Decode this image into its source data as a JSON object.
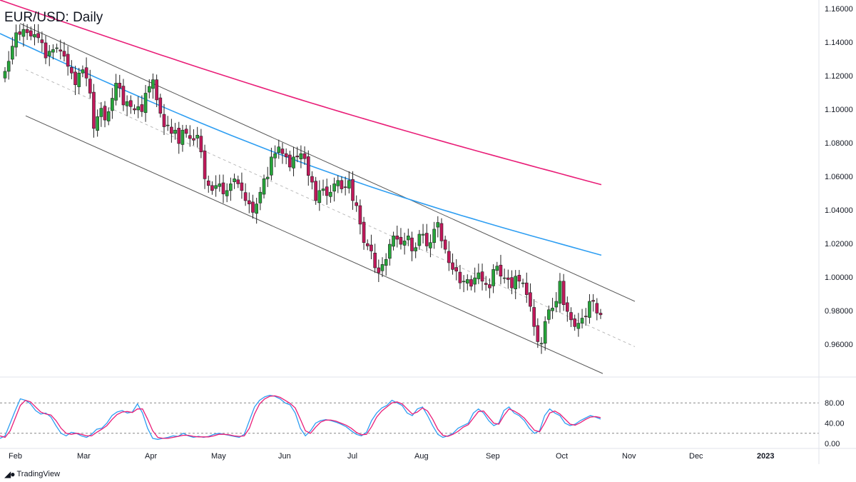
{
  "title": "EUR/USD: Daily",
  "brand": "TradingView",
  "chart_data": [
    {
      "type": "candlestick",
      "symbol": "EUR/USD",
      "timeframe": "Daily",
      "ylim": [
        0.9417,
        1.165
      ],
      "y_ticks": [
        "1.16000",
        "1.14000",
        "1.12000",
        "1.10000",
        "1.08000",
        "1.06000",
        "1.04000",
        "1.02000",
        "1.00000",
        "0.98000",
        "0.96000"
      ],
      "x_ticks": [
        "Feb",
        "Mar",
        "Apr",
        "May",
        "Jun",
        "Jul",
        "Aug",
        "Sep",
        "Oct",
        "Nov",
        "Dec",
        "2023"
      ],
      "colors": {
        "up": "#26a63a",
        "down": "#c2185b",
        "ma_fast": "#2e9ef2",
        "ma_slow": "#e91e78",
        "channel": "#555555",
        "midline": "#bbbbbb"
      },
      "series": [
        {
          "kind": "ohlc",
          "closes": [
            1.1225,
            1.1285,
            1.1375,
            1.1455,
            1.1445,
            1.1475,
            1.1455,
            1.1435,
            1.1445,
            1.1425,
            1.1395,
            1.1305,
            1.1345,
            1.1355,
            1.1365,
            1.1345,
            1.1315,
            1.1255,
            1.1215,
            1.1145,
            1.1215,
            1.1235,
            1.1185,
            1.1095,
            1.0885,
            1.0955,
            1.1005,
            1.0935,
            1.0985,
            1.1065,
            1.1155,
            1.1125,
            1.1025,
            1.1045,
            1.1015,
            1.0995,
            1.1015,
            1.0985,
            1.1095,
            1.1135,
            1.1175,
            1.1055,
            1.0975,
            1.0895,
            1.0905,
            1.0855,
            1.0875,
            1.0795,
            1.0875,
            1.0855,
            1.0825,
            1.0815,
            1.0845,
            1.0745,
            1.0585,
            1.0545,
            1.0515,
            1.0545,
            1.0555,
            1.0495,
            1.0515,
            1.0555,
            1.0585,
            1.0555,
            1.0515,
            1.0455,
            1.0435,
            1.0385,
            1.0435,
            1.0505,
            1.0585,
            1.0595,
            1.0715,
            1.0735,
            1.0775,
            1.0735,
            1.0715,
            1.0655,
            1.0715,
            1.0715,
            1.0735,
            1.0705,
            1.0605,
            1.0565,
            1.0455,
            1.0515,
            1.0525,
            1.0485,
            1.0505,
            1.0555,
            1.0575,
            1.0525,
            1.0535,
            1.0575,
            1.0455,
            1.0425,
            1.0315,
            1.0205,
            1.0185,
            1.0155,
            1.0055,
            1.0025,
            1.0075,
            1.0105,
            1.0195,
            1.0245,
            1.0225,
            1.0195,
            1.0215,
            1.0245,
            1.0155,
            1.0175,
            1.0255,
            1.0255,
            1.0185,
            1.0205,
            1.0285,
            1.0325,
            1.0215,
            1.0165,
            1.0085,
            1.0045,
            1.0035,
            0.9965,
            0.9975,
            0.9985,
            0.9945,
            0.9995,
            1.0025,
            0.9975,
            0.9955,
            0.9935,
            1.0045,
            1.0065,
            1.0005,
            0.9995,
            0.9985,
            0.9935,
            1.0005,
            0.9975,
            0.9965,
            0.9895,
            0.9825,
            0.9705,
            0.9615,
            0.9605,
            0.9735,
            0.9805,
            0.9815,
            0.9855,
            0.9975,
            0.9835,
            0.9795,
            0.9745,
            0.9705,
            0.9725,
            0.9755,
            0.9765,
            0.9855,
            0.9855,
            0.9785,
            0.9775
          ]
        },
        {
          "kind": "moving_average",
          "name": "",
          "color": "#2e9ef2",
          "start": 1.145,
          "end": 1.013
        },
        {
          "kind": "moving_average",
          "name": "",
          "color": "#e91e78",
          "start": 1.165,
          "end": 1.055
        }
      ],
      "channel": {
        "upper": [
          1.151,
          0.9855
        ],
        "lower": [
          1.096,
          0.9425
        ],
        "mid": [
          1.1235,
          0.9585
        ]
      }
    },
    {
      "type": "line",
      "indicator": "stochastic",
      "ylim": [
        0,
        100
      ],
      "y_ticks": [
        "80.00",
        "40.00",
        "0.00"
      ],
      "levels": [
        80,
        20
      ],
      "k_values": [
        10,
        15,
        40,
        65,
        88,
        85,
        78,
        65,
        58,
        60,
        52,
        35,
        20,
        15,
        22,
        20,
        15,
        12,
        18,
        28,
        30,
        40,
        55,
        62,
        65,
        60,
        62,
        78,
        60,
        30,
        10,
        8,
        10,
        12,
        15,
        14,
        20,
        15,
        12,
        14,
        12,
        14,
        18,
        20,
        18,
        16,
        14,
        12,
        18,
        45,
        72,
        85,
        92,
        95,
        93,
        88,
        80,
        76,
        60,
        30,
        15,
        25,
        40,
        45,
        47,
        45,
        42,
        38,
        33,
        25,
        18,
        15,
        22,
        45,
        60,
        70,
        75,
        85,
        80,
        75,
        60,
        55,
        68,
        72,
        55,
        35,
        18,
        12,
        15,
        20,
        30,
        35,
        40,
        60,
        68,
        60,
        45,
        35,
        40,
        65,
        72,
        60,
        55,
        45,
        30,
        20,
        25,
        55,
        68,
        60,
        55,
        40,
        35,
        38,
        45,
        50,
        55,
        52,
        48
      ],
      "d_values": [
        15,
        12,
        25,
        50,
        75,
        85,
        82,
        72,
        62,
        58,
        56,
        45,
        30,
        20,
        18,
        20,
        18,
        15,
        15,
        22,
        28,
        35,
        47,
        57,
        62,
        63,
        61,
        68,
        68,
        48,
        25,
        12,
        10,
        10,
        12,
        14,
        16,
        16,
        14,
        13,
        13,
        13,
        15,
        18,
        18,
        17,
        15,
        14,
        15,
        30,
        58,
        78,
        88,
        93,
        94,
        91,
        85,
        79,
        70,
        48,
        25,
        20,
        32,
        42,
        46,
        46,
        44,
        40,
        36,
        30,
        22,
        17,
        18,
        33,
        52,
        64,
        72,
        80,
        82,
        78,
        68,
        58,
        62,
        70,
        64,
        48,
        28,
        16,
        14,
        18,
        24,
        32,
        37,
        50,
        63,
        64,
        52,
        40,
        38,
        55,
        68,
        64,
        58,
        50,
        38,
        26,
        23,
        40,
        60,
        64,
        58,
        48,
        38,
        36,
        41,
        47,
        52,
        53,
        51
      ]
    }
  ]
}
